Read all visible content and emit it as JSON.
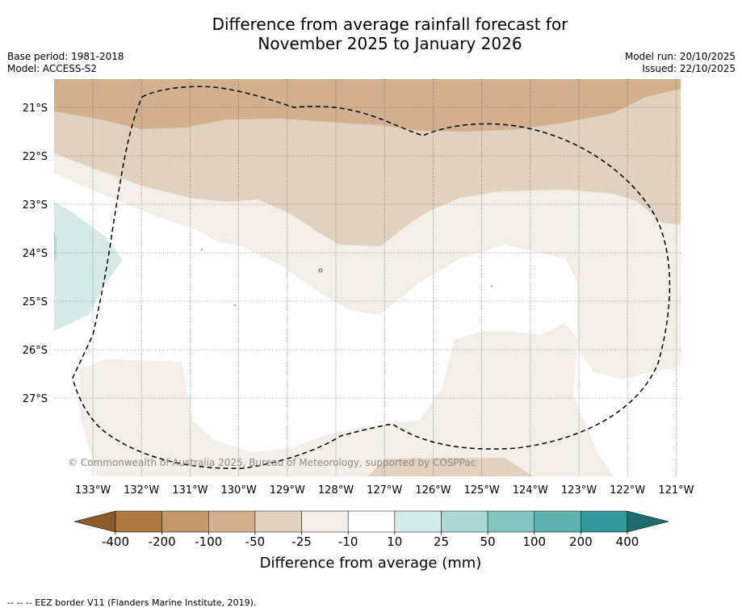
{
  "title_line1": "Difference from average rainfall forecast for",
  "title_line2": "November 2025 to January 2026",
  "base_period": "Base period: 1981-2018",
  "model": "Model: ACCESS-S2",
  "model_run": "Model run: 20/10/2025",
  "issued": "Issued: 22/10/2025",
  "lat_labels": [
    "21°S",
    "22°S",
    "23°S",
    "24°S",
    "25°S",
    "26°S",
    "27°S"
  ],
  "lon_labels": [
    "133°W",
    "132°W",
    "131°W",
    "130°W",
    "129°W",
    "128°W",
    "127°W",
    "126°W",
    "125°W",
    "124°W",
    "123°W",
    "122°W",
    "121°W"
  ],
  "copyright": "© Commonwealth of Australia 2025, Bureau of Meteorology, supported by COSPPac",
  "colorbar": {
    "ticks": [
      "-400",
      "-200",
      "-100",
      "-50",
      "-25",
      "-10",
      "10",
      "25",
      "50",
      "100",
      "200",
      "400"
    ],
    "colors": [
      "#8c5a2b",
      "#ae7841",
      "#c4976a",
      "#d1b08e",
      "#e3d1bf",
      "#f4eee8",
      "#ffffff",
      "#d4eae9",
      "#abd7d5",
      "#84c4c2",
      "#5eb1ae",
      "#34999a",
      "#1d6b6b"
    ],
    "label": "Difference from average (mm)"
  },
  "legend_note": "-- -- -- EEZ border V11 (Flanders Marine Institute, 2019)."
}
